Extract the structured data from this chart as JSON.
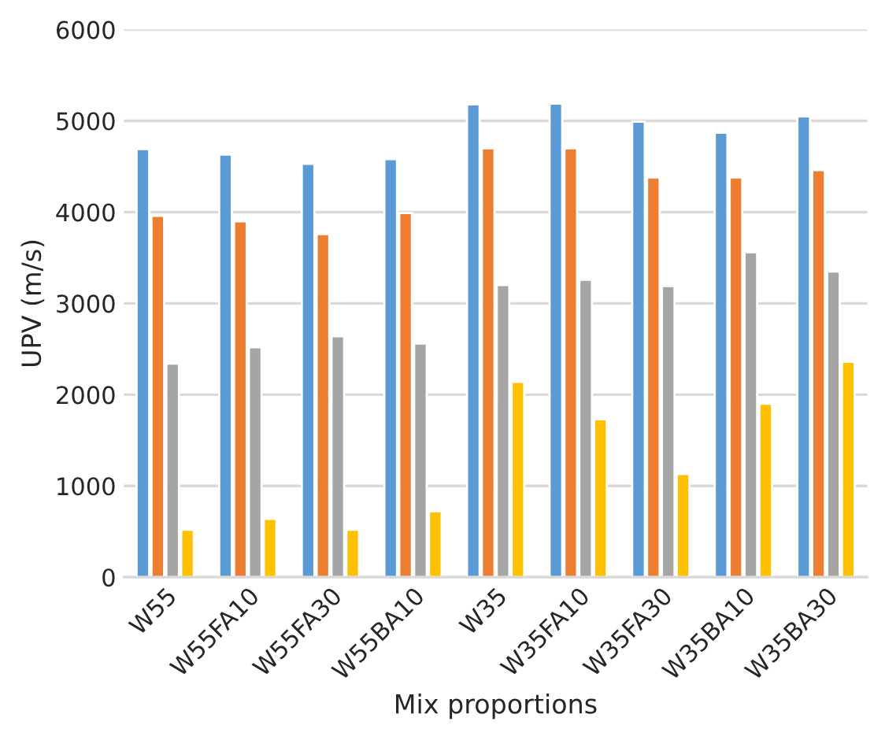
{
  "chart_data": {
    "type": "bar",
    "xlabel": "Mix proportions",
    "ylabel": "UPV (m/s)",
    "categories": [
      "W55",
      "W55FA10",
      "W55FA30",
      "W55BA10",
      "W35",
      "W35FA10",
      "W35FA30",
      "W35BA10",
      "W35BA30"
    ],
    "series": [
      {
        "color": "#5b9bd5",
        "values": [
          4690,
          4630,
          4530,
          4580,
          5180,
          5190,
          4990,
          4870,
          5050
        ]
      },
      {
        "color": "#ed7d31",
        "values": [
          3960,
          3900,
          3760,
          3990,
          4700,
          4700,
          4380,
          4380,
          4460
        ]
      },
      {
        "color": "#a5a5a5",
        "values": [
          2340,
          2520,
          2640,
          2560,
          3200,
          3260,
          3190,
          3560,
          3350
        ]
      },
      {
        "color": "#ffc000",
        "values": [
          520,
          640,
          520,
          720,
          2140,
          1730,
          1130,
          1900,
          2360
        ]
      }
    ],
    "ylim": [
      0,
      6000
    ],
    "yticks": [
      0,
      1000,
      2000,
      3000,
      4000,
      5000,
      6000
    ],
    "grid": "y",
    "legend": false
  }
}
